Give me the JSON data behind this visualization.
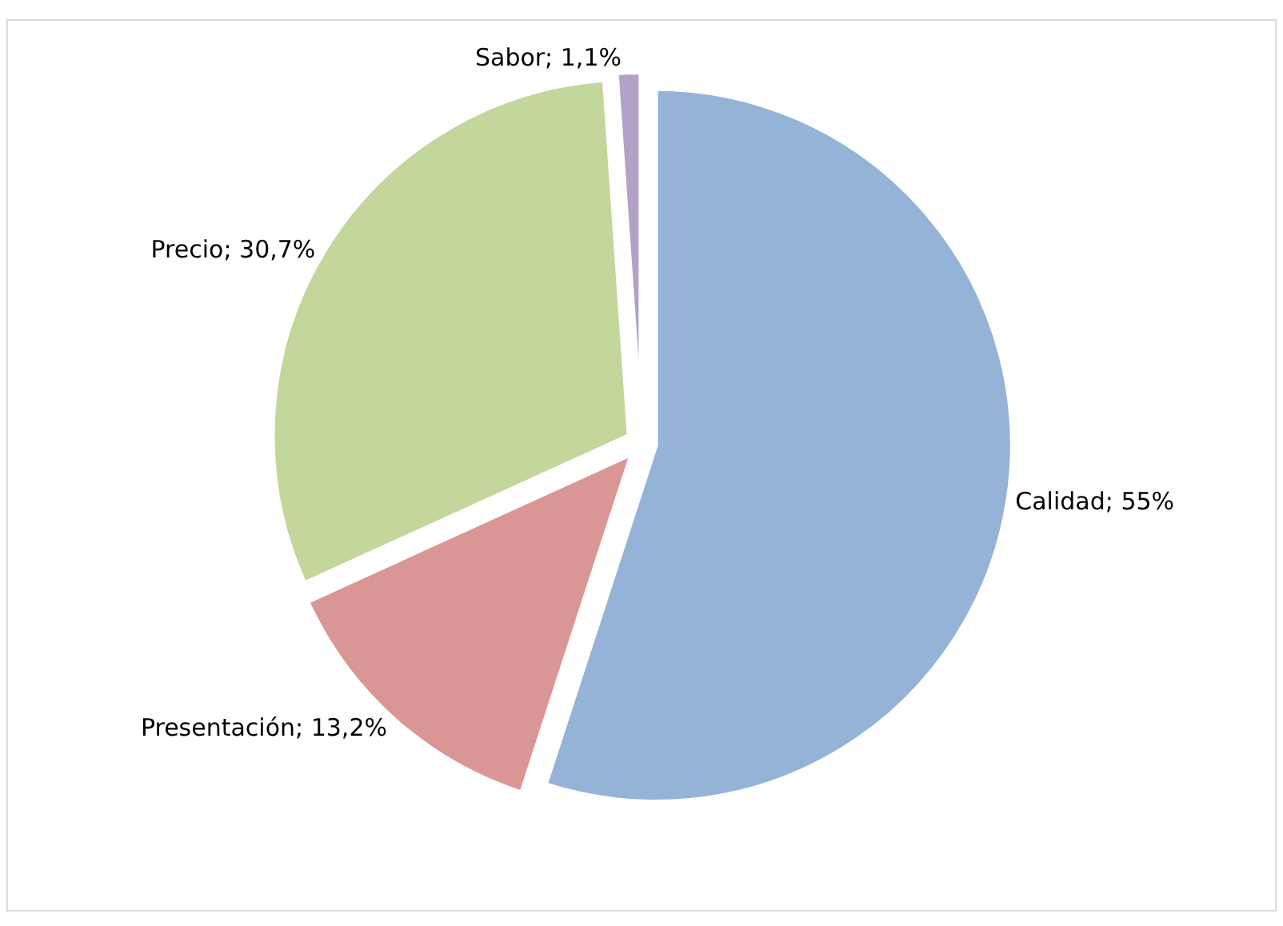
{
  "chart_data": {
    "type": "pie",
    "categories": [
      "Calidad",
      "Presentación",
      "Precio",
      "Sabor"
    ],
    "values": [
      55,
      13.2,
      30.7,
      1.1
    ],
    "colors": [
      "#95b3d7",
      "#d99694",
      "#c3d69b",
      "#b3a2c7"
    ],
    "value_labels": [
      "55%",
      "13,2%",
      "30,7%",
      "1,1%"
    ],
    "legend": false
  }
}
